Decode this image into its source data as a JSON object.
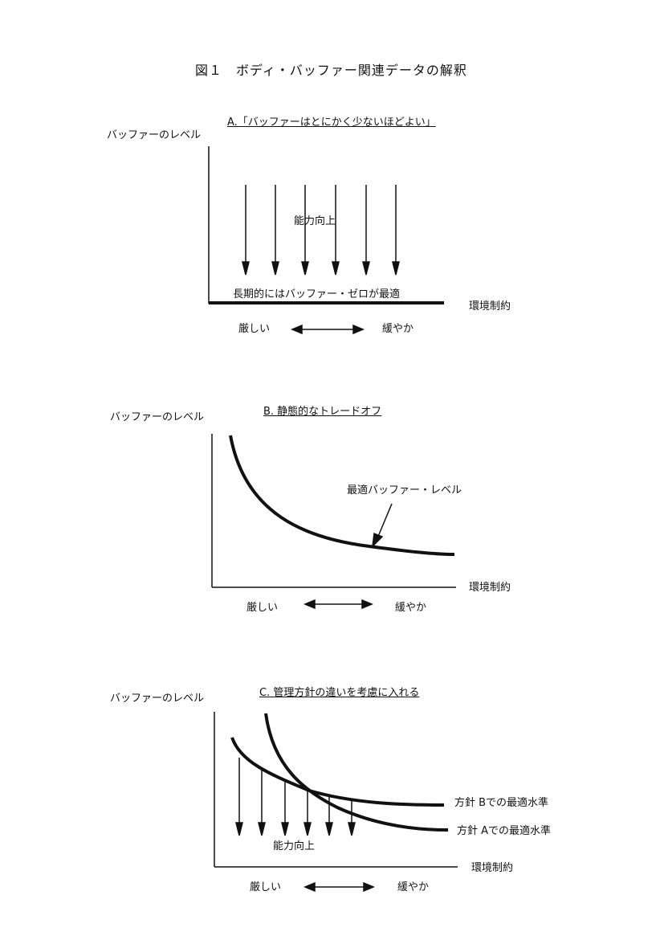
{
  "figure": {
    "title": "図１　ボディ・バッファー関連データの解釈"
  },
  "panels": [
    {
      "title": "A.「バッファーはとにかく少ないほどよい」",
      "ylabel": "バッファーのレベル",
      "xlabel": "環境制約",
      "annotation": "能力向上",
      "line_label": "長期的にはバッファー・ゼロが最適",
      "left_label": "厳しい",
      "right_label": "緩やか"
    },
    {
      "title": "B. 静態的なトレードオフ",
      "ylabel": "バッファーのレベル",
      "xlabel": "環境制約",
      "curve_label": "最適バッファー・レベル",
      "left_label": "厳しい",
      "right_label": "緩やか"
    },
    {
      "title": "C. 管理方針の違いを考慮に入れる",
      "ylabel": "バッファーのレベル",
      "xlabel": "環境制約",
      "annotation": "能力向上",
      "curve_b_label": "方針 Bでの最適水準",
      "curve_a_label": "方針 Aでの最適水準",
      "left_label": "厳しい",
      "right_label": "緩やか"
    }
  ]
}
